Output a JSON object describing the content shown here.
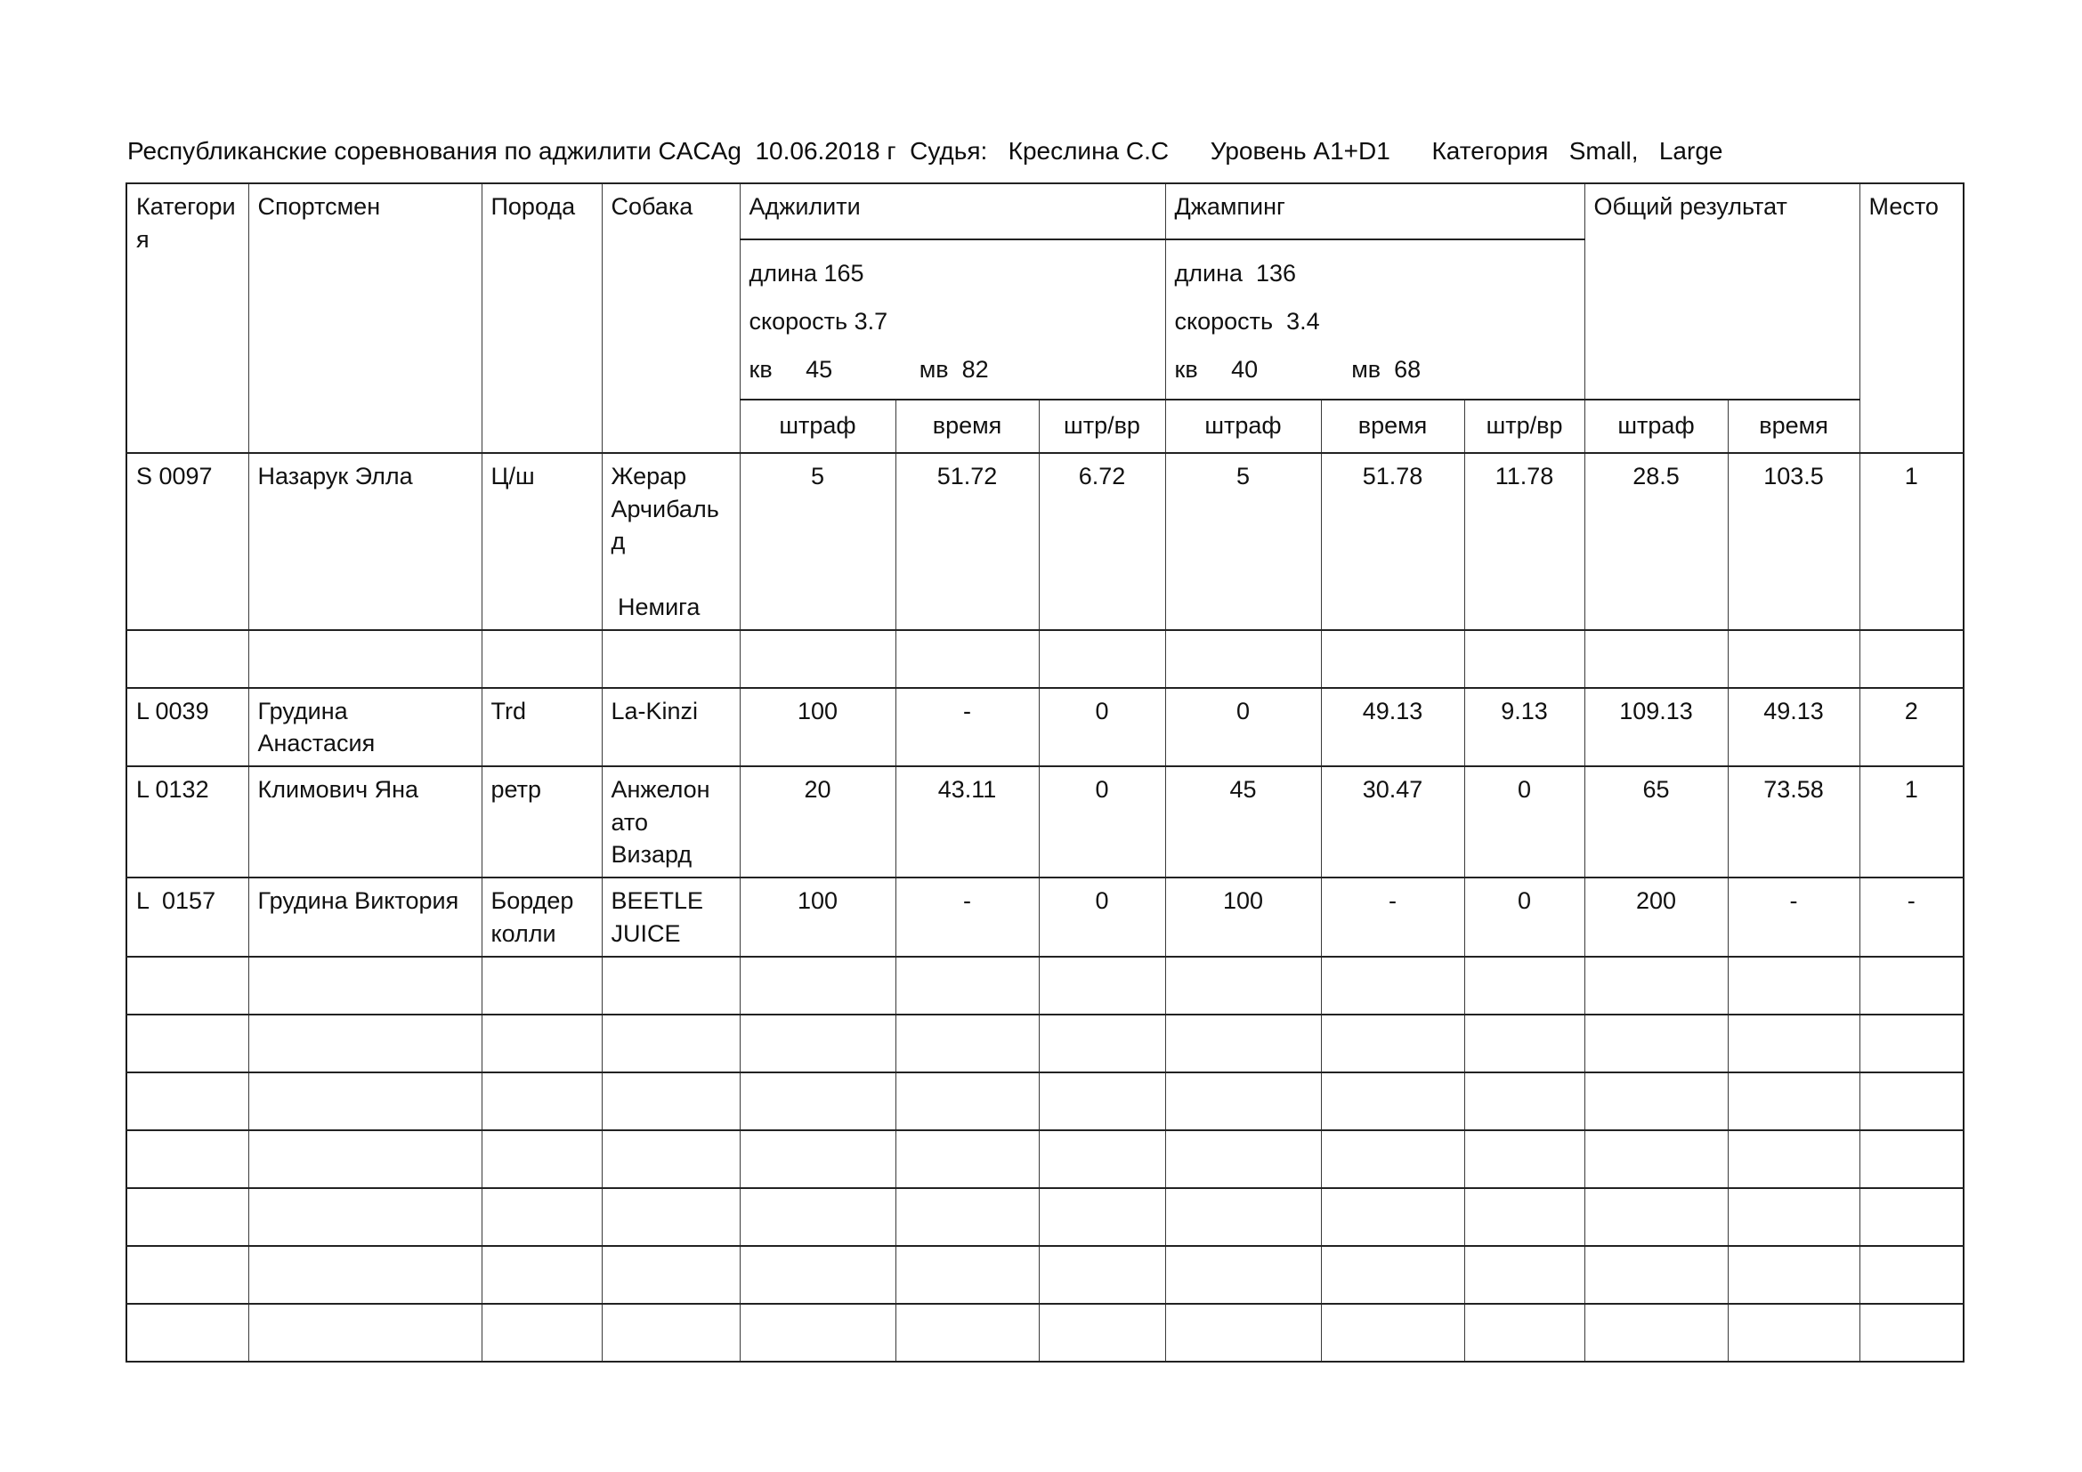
{
  "page": {
    "title": "Республиканские соревнования по аджилити CACAg  10.06.2018 г  Судья:   Креслина С.С      Уровень А1+D1      Категория   Small,   Large"
  },
  "table": {
    "header": {
      "category": "Категория",
      "athlete": "Спортсмен",
      "breed": "Порода",
      "dog": "Собака",
      "agility": "Аджилити",
      "jumping": "Джампинг",
      "agility_info": "длина 165\nскорость 3.7\nкв     45             мв  82",
      "jumping_info": "длина  136\nскорость  3.4\nкв     40              мв  68",
      "total": "Общий результат",
      "place": "Место",
      "sub": [
        "штраф",
        "время",
        "штр/вр",
        "штраф",
        "время",
        "штр/вр",
        "штраф",
        "время"
      ]
    },
    "column_keys": [
      "category",
      "athlete",
      "breed",
      "dog",
      "agility-penalty",
      "agility-time",
      "agility-ptime",
      "jumping-penalty",
      "jumping-time",
      "jumping-ptime",
      "total-penalty",
      "total-time",
      "place"
    ],
    "rows": [
      {
        "cells": [
          "S 0097",
          "Назарук Элла",
          "Ц/ш",
          "Жерар Арчибальд\n\n Немига",
          "5",
          "51.72",
          "6.72",
          "5",
          "51.78",
          "11.78",
          "28.5",
          "103.5",
          "1"
        ]
      },
      {
        "cells": [
          "",
          "",
          "",
          "",
          "",
          "",
          "",
          "",
          "",
          "",
          "",
          "",
          ""
        ]
      },
      {
        "cells": [
          "L 0039",
          "Грудина Анастасия",
          "Trd",
          "La-Kinzi",
          "100",
          "-",
          "0",
          "0",
          "49.13",
          "9.13",
          "109.13",
          "49.13",
          "2"
        ]
      },
      {
        "cells": [
          "L 0132",
          "Климович Яна",
          "ретр",
          "Анжелонато Визард",
          "20",
          "43.11",
          "0",
          "45",
          "30.47",
          "0",
          "65",
          "73.58",
          "1"
        ]
      },
      {
        "cells": [
          "L  0157",
          "Грудина Виктория",
          "Бордер колли",
          "BEETLE JUICE",
          "100",
          "-",
          "0",
          "100",
          "-",
          "0",
          "200",
          "-",
          "-"
        ]
      },
      {
        "cells": [
          "",
          "",
          "",
          "",
          "",
          "",
          "",
          "",
          "",
          "",
          "",
          "",
          ""
        ]
      },
      {
        "cells": [
          "",
          "",
          "",
          "",
          "",
          "",
          "",
          "",
          "",
          "",
          "",
          "",
          ""
        ]
      },
      {
        "cells": [
          "",
          "",
          "",
          "",
          "",
          "",
          "",
          "",
          "",
          "",
          "",
          "",
          ""
        ]
      },
      {
        "cells": [
          "",
          "",
          "",
          "",
          "",
          "",
          "",
          "",
          "",
          "",
          "",
          "",
          ""
        ]
      },
      {
        "cells": [
          "",
          "",
          "",
          "",
          "",
          "",
          "",
          "",
          "",
          "",
          "",
          "",
          ""
        ]
      },
      {
        "cells": [
          "",
          "",
          "",
          "",
          "",
          "",
          "",
          "",
          "",
          "",
          "",
          "",
          ""
        ]
      },
      {
        "cells": [
          "",
          "",
          "",
          "",
          "",
          "",
          "",
          "",
          "",
          "",
          "",
          "",
          ""
        ]
      }
    ]
  }
}
